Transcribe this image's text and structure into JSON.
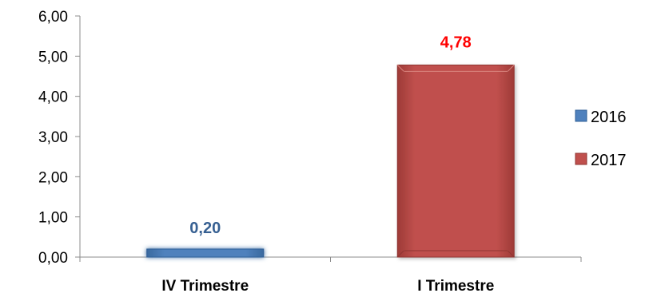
{
  "chart_data": {
    "type": "bar",
    "categories": [
      "IV Trimestre",
      "I Trimestre"
    ],
    "series": [
      {
        "name": "2016",
        "values": [
          0.2,
          null
        ],
        "color": "#4F81BD"
      },
      {
        "name": "2017",
        "values": [
          null,
          4.78
        ],
        "color": "#C0504D"
      }
    ],
    "data_labels": [
      "0,20",
      "4,78"
    ],
    "data_label_colors": [
      "#376092",
      "#FF0000"
    ],
    "y_ticks": [
      "0,00",
      "1,00",
      "2,00",
      "3,00",
      "4,00",
      "5,00",
      "6,00"
    ],
    "ylim": [
      0,
      6
    ],
    "legend_position": "right",
    "grid": false
  }
}
